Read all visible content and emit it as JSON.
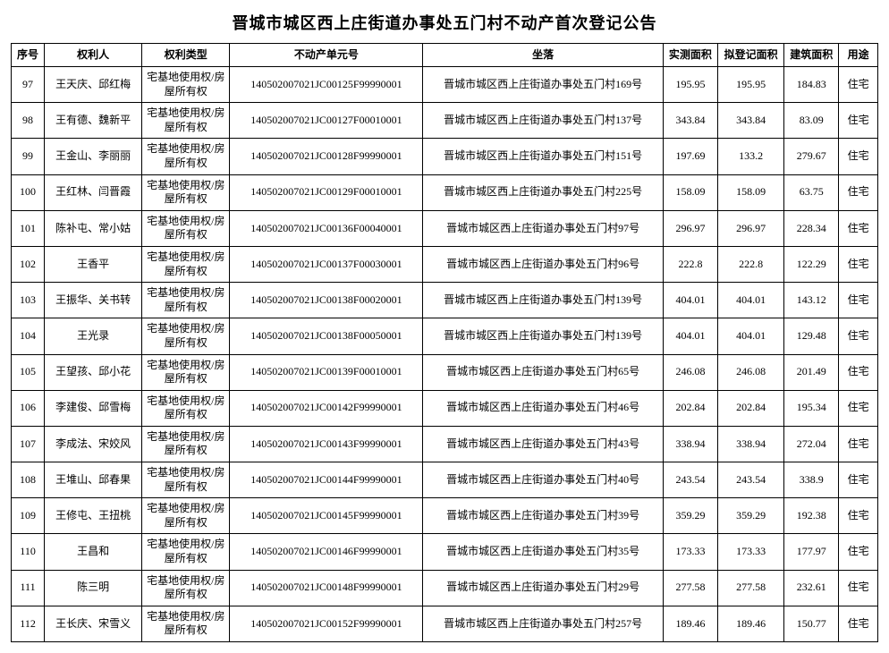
{
  "title": "晋城市城区西上庄街道办事处五门村不动产首次登记公告",
  "columns": [
    "序号",
    "权利人",
    "权利类型",
    "不动产单元号",
    "坐落",
    "实测面积",
    "拟登记面积",
    "建筑面积",
    "用途"
  ],
  "rightType": "宅基地使用权/房屋所有权",
  "locationPrefix": "晋城市城区西上庄街道办事处五门村",
  "usage": "住宅",
  "rows": [
    {
      "seq": "97",
      "owner": "王天庆、邱红梅",
      "unit": "140502007021JC00125F99990001",
      "locNo": "169号",
      "a1": "195.95",
      "a2": "195.95",
      "a3": "184.83"
    },
    {
      "seq": "98",
      "owner": "王有德、魏新平",
      "unit": "140502007021JC00127F00010001",
      "locNo": "137号",
      "a1": "343.84",
      "a2": "343.84",
      "a3": "83.09"
    },
    {
      "seq": "99",
      "owner": "王金山、李丽丽",
      "unit": "140502007021JC00128F99990001",
      "locNo": "151号",
      "a1": "197.69",
      "a2": "133.2",
      "a3": "279.67"
    },
    {
      "seq": "100",
      "owner": "王红林、闫晋霞",
      "unit": "140502007021JC00129F00010001",
      "locNo": "225号",
      "a1": "158.09",
      "a2": "158.09",
      "a3": "63.75"
    },
    {
      "seq": "101",
      "owner": "陈补屯、常小姑",
      "unit": "140502007021JC00136F00040001",
      "locNo": "97号",
      "a1": "296.97",
      "a2": "296.97",
      "a3": "228.34"
    },
    {
      "seq": "102",
      "owner": "王香平",
      "unit": "140502007021JC00137F00030001",
      "locNo": "96号",
      "a1": "222.8",
      "a2": "222.8",
      "a3": "122.29"
    },
    {
      "seq": "103",
      "owner": "王振华、关书转",
      "unit": "140502007021JC00138F00020001",
      "locNo": "139号",
      "a1": "404.01",
      "a2": "404.01",
      "a3": "143.12"
    },
    {
      "seq": "104",
      "owner": "王光录",
      "unit": "140502007021JC00138F00050001",
      "locNo": "139号",
      "a1": "404.01",
      "a2": "404.01",
      "a3": "129.48"
    },
    {
      "seq": "105",
      "owner": "王望孩、邱小花",
      "unit": "140502007021JC00139F00010001",
      "locNo": "65号",
      "a1": "246.08",
      "a2": "246.08",
      "a3": "201.49"
    },
    {
      "seq": "106",
      "owner": "李建俊、邱雪梅",
      "unit": "140502007021JC00142F99990001",
      "locNo": "46号",
      "a1": "202.84",
      "a2": "202.84",
      "a3": "195.34"
    },
    {
      "seq": "107",
      "owner": "李成法、宋姣风",
      "unit": "140502007021JC00143F99990001",
      "locNo": "43号",
      "a1": "338.94",
      "a2": "338.94",
      "a3": "272.04"
    },
    {
      "seq": "108",
      "owner": "王堆山、邱春果",
      "unit": "140502007021JC00144F99990001",
      "locNo": "40号",
      "a1": "243.54",
      "a2": "243.54",
      "a3": "338.9"
    },
    {
      "seq": "109",
      "owner": "王修屯、王扭桃",
      "unit": "140502007021JC00145F99990001",
      "locNo": "39号",
      "a1": "359.29",
      "a2": "359.29",
      "a3": "192.38"
    },
    {
      "seq": "110",
      "owner": "王昌和",
      "unit": "140502007021JC00146F99990001",
      "locNo": "35号",
      "a1": "173.33",
      "a2": "173.33",
      "a3": "177.97"
    },
    {
      "seq": "111",
      "owner": "陈三明",
      "unit": "140502007021JC00148F99990001",
      "locNo": "29号",
      "a1": "277.58",
      "a2": "277.58",
      "a3": "232.61"
    },
    {
      "seq": "112",
      "owner": "王长庆、宋雪义",
      "unit": "140502007021JC00152F99990001",
      "locNo": "257号",
      "a1": "189.46",
      "a2": "189.46",
      "a3": "150.77"
    }
  ]
}
